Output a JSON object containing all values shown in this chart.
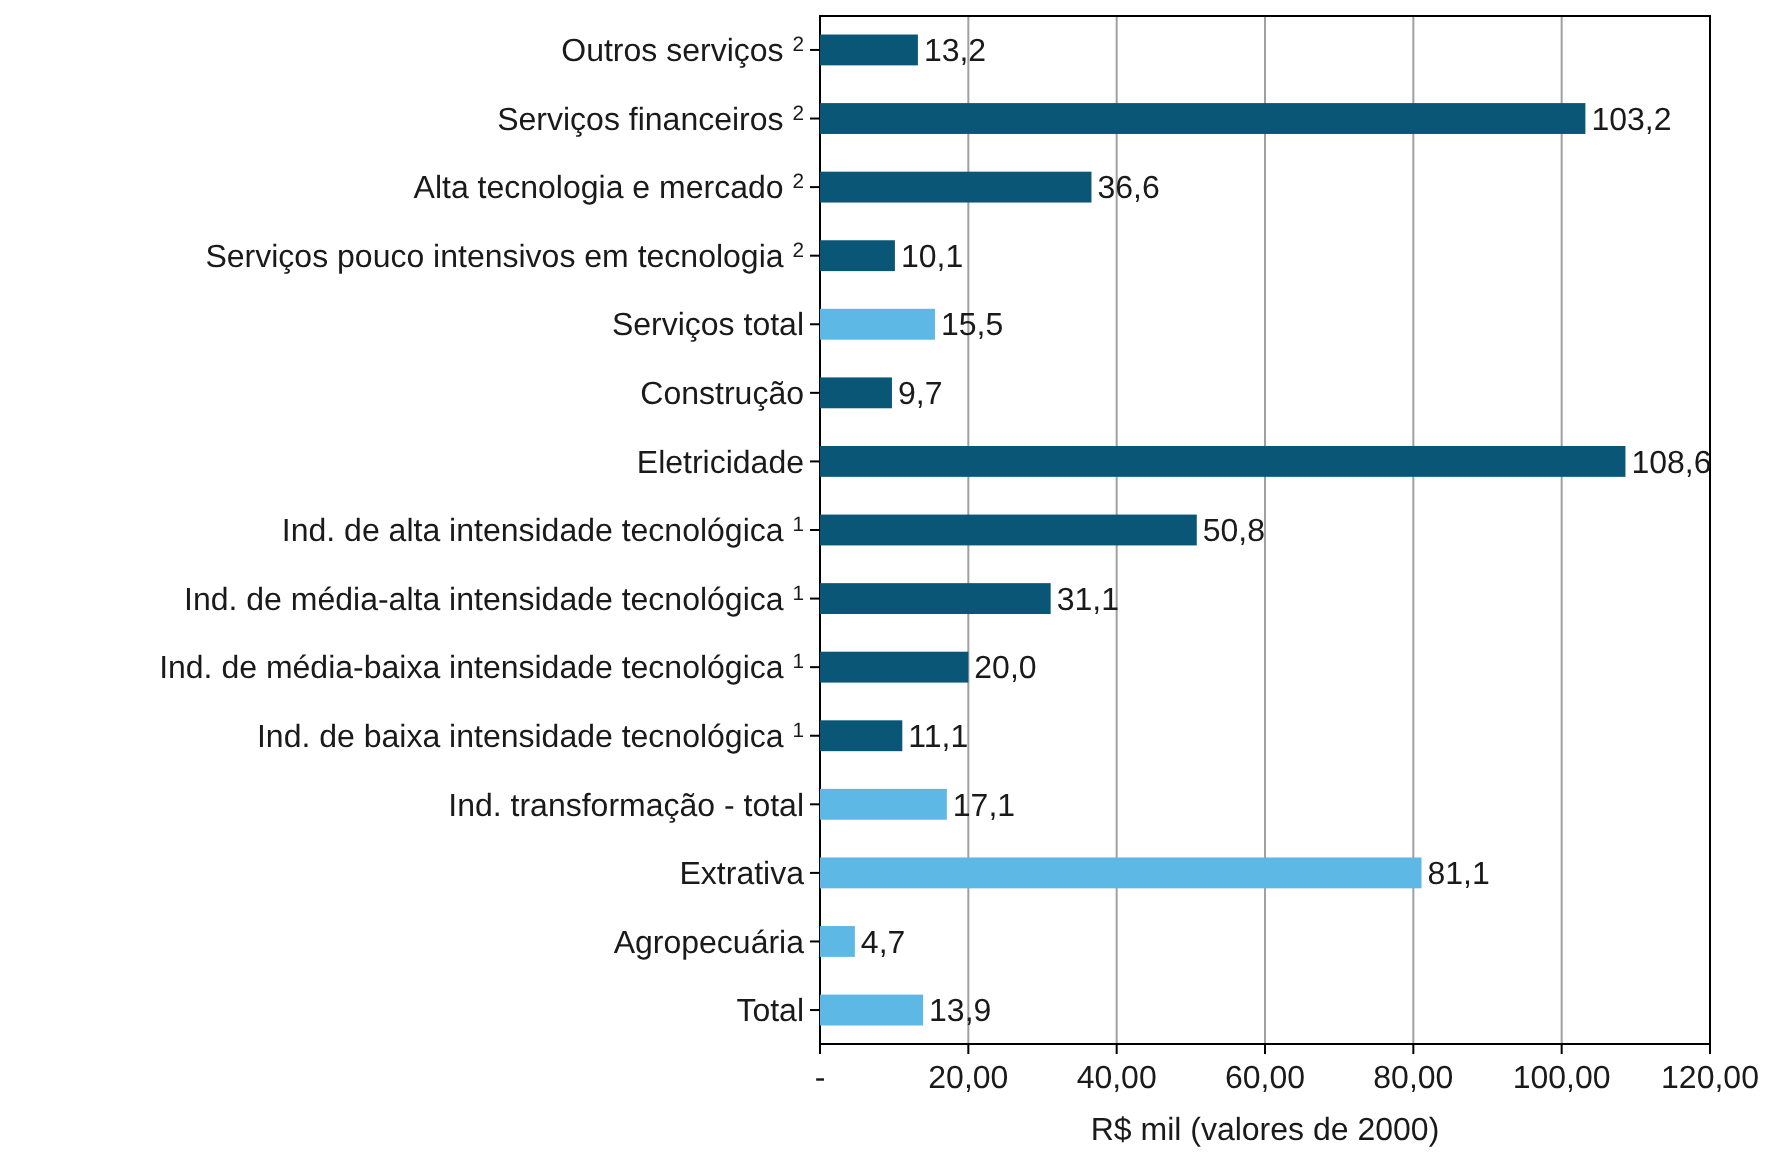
{
  "chart_data": {
    "type": "bar",
    "orientation": "horizontal",
    "xlabel": "R$ mil (valores de 2000)",
    "categories": [
      "Outros serviços $^{2}$",
      "Serviços financeiros $^{2}$",
      "Alta tecnologia e mercado $^{2}$",
      "Serviços pouco intensivos em tecnologia $^{2}$",
      "Serviços total",
      "Construção",
      "Eletricidade",
      "Ind. de alta intensidade tecnológica $^{1}$",
      "Ind. de média-alta intensidade tecnológica $^{1}$",
      "Ind. de média-baixa intensidade tecnológica $^{1}$",
      "Ind. de baixa intensidade tecnológica $^{1}$",
      "Ind. transformação - total",
      "Extrativa",
      "Agropecuária",
      "Total"
    ],
    "values": [
      13.2,
      103.2,
      36.6,
      10.1,
      15.5,
      9.7,
      108.6,
      50.8,
      31.1,
      20.0,
      11.1,
      17.1,
      81.1,
      4.7,
      13.9
    ],
    "value_labels": [
      "13,2",
      "103,2",
      "36,6",
      "10,1",
      "15,5",
      "9,7",
      "108,6",
      "50,8",
      "31,1",
      "20,0",
      "11,1",
      "17,1",
      "81,1",
      "4,7",
      "13,9"
    ],
    "colors": [
      "#0a5677",
      "#0a5677",
      "#0a5677",
      "#0a5677",
      "#5db8e6",
      "#0a5677",
      "#0a5677",
      "#0a5677",
      "#0a5677",
      "#0a5677",
      "#0a5677",
      "#5db8e6",
      "#5db8e6",
      "#5db8e6",
      "#5db8e6"
    ],
    "xlim": [
      0,
      120
    ],
    "xticks": [
      {
        "value": 0,
        "label": "-"
      },
      {
        "value": 20,
        "label": "20,00"
      },
      {
        "value": 40,
        "label": "40,00"
      },
      {
        "value": 60,
        "label": "60,00"
      },
      {
        "value": 80,
        "label": "80,00"
      },
      {
        "value": 100,
        "label": "100,00"
      },
      {
        "value": 120,
        "label": "120,00"
      }
    ],
    "grid": "x"
  }
}
